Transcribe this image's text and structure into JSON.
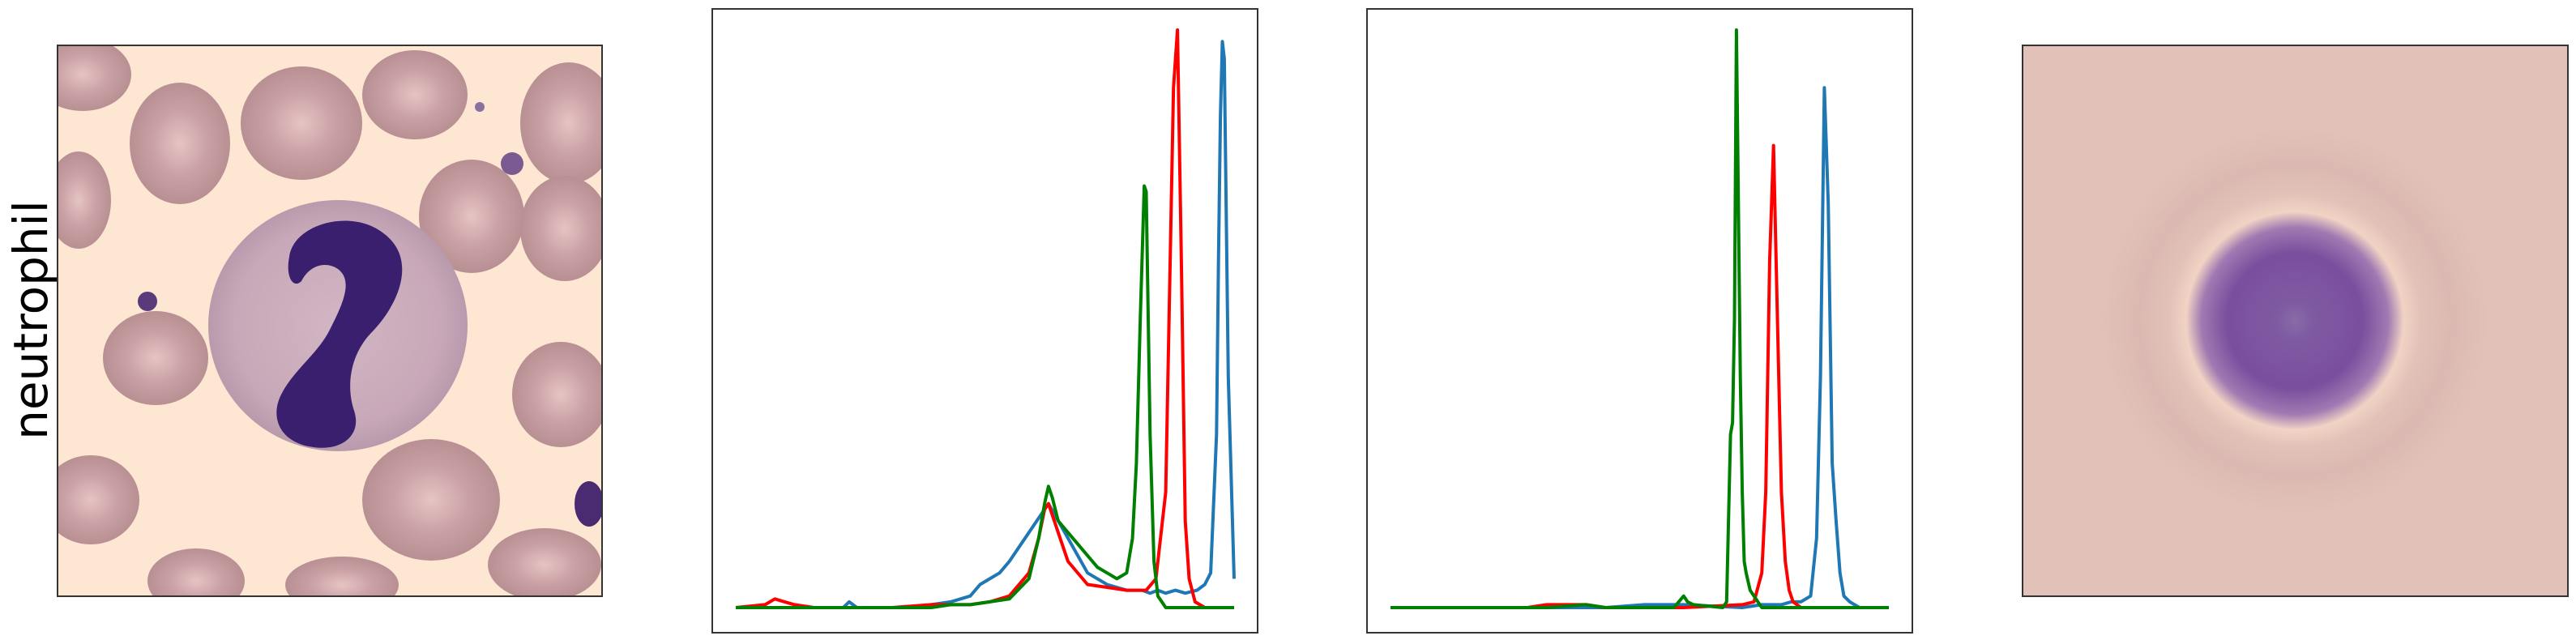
{
  "row_label": "neutrophil",
  "panels": {
    "cell_image": {
      "description_icon": "neutrophil-micrograph"
    },
    "mean_image": {
      "description_icon": "averaged-cell-blob"
    }
  },
  "chart_data": [
    {
      "type": "line",
      "title": "",
      "xlabel": "",
      "ylabel": "",
      "grid": false,
      "axes_ticks": false,
      "xlim": [
        0,
        255
      ],
      "ylim": [
        0,
        1
      ],
      "series": [
        {
          "color": "#1f77b4",
          "x": [
            0,
            15,
            40,
            55,
            58,
            62,
            80,
            95,
            100,
            110,
            120,
            125,
            130,
            135,
            140,
            150,
            160,
            170,
            180,
            190,
            200,
            208,
            212,
            216,
            220,
            225,
            230,
            236,
            240,
            243,
            246,
            247,
            248,
            249,
            250,
            252,
            255
          ],
          "values": [
            0,
            0,
            0,
            0,
            0.01,
            0,
            0,
            0,
            0.005,
            0.01,
            0.02,
            0.04,
            0.05,
            0.06,
            0.08,
            0.13,
            0.18,
            0.12,
            0.06,
            0.04,
            0.03,
            0.03,
            0.025,
            0.03,
            0.025,
            0.03,
            0.025,
            0.03,
            0.04,
            0.06,
            0.3,
            0.6,
            0.85,
            0.98,
            0.95,
            0.4,
            0.05
          ]
        },
        {
          "color": "#ff0000",
          "x": [
            0,
            15,
            20,
            25,
            30,
            40,
            60,
            80,
            100,
            120,
            130,
            140,
            150,
            155,
            158,
            160,
            165,
            170,
            180,
            190,
            200,
            210,
            215,
            220,
            222,
            224,
            226,
            228,
            230,
            232,
            235,
            240,
            255
          ],
          "values": [
            0,
            0.005,
            0.015,
            0.01,
            0.005,
            0,
            0,
            0,
            0.005,
            0.005,
            0.01,
            0.02,
            0.06,
            0.12,
            0.17,
            0.18,
            0.13,
            0.08,
            0.04,
            0.035,
            0.03,
            0.03,
            0.05,
            0.2,
            0.55,
            0.9,
            1.0,
            0.6,
            0.15,
            0.05,
            0.01,
            0,
            0
          ]
        },
        {
          "color": "#008000",
          "x": [
            0,
            40,
            80,
            100,
            110,
            120,
            130,
            140,
            150,
            155,
            158,
            160,
            162,
            165,
            170,
            175,
            180,
            185,
            190,
            195,
            200,
            203,
            205,
            207,
            209,
            210,
            212,
            214,
            216,
            218,
            220,
            225,
            230,
            255
          ],
          "values": [
            0,
            0,
            0,
            0,
            0.005,
            0.005,
            0.01,
            0.015,
            0.05,
            0.12,
            0.18,
            0.21,
            0.19,
            0.15,
            0.13,
            0.11,
            0.09,
            0.07,
            0.06,
            0.05,
            0.06,
            0.12,
            0.25,
            0.5,
            0.73,
            0.72,
            0.3,
            0.08,
            0.02,
            0.01,
            0,
            0,
            0,
            0
          ]
        }
      ]
    },
    {
      "type": "line",
      "title": "",
      "xlabel": "",
      "ylabel": "",
      "grid": false,
      "axes_ticks": false,
      "xlim": [
        0,
        255
      ],
      "ylim": [
        0,
        1
      ],
      "series": [
        {
          "color": "#1f77b4",
          "x": [
            0,
            40,
            80,
            100,
            110,
            130,
            150,
            180,
            190,
            200,
            205,
            210,
            215,
            218,
            220,
            222,
            224,
            226,
            228,
            230,
            232,
            235,
            240,
            255
          ],
          "values": [
            0,
            0,
            0,
            0,
            0,
            0.005,
            0.005,
            0,
            0.005,
            0.005,
            0.01,
            0.01,
            0.02,
            0.12,
            0.4,
            0.9,
            0.7,
            0.25,
            0.15,
            0.06,
            0.02,
            0.01,
            0,
            0
          ]
        },
        {
          "color": "#ff0000",
          "x": [
            0,
            40,
            70,
            80,
            90,
            100,
            110,
            150,
            180,
            186,
            190,
            192,
            194,
            196,
            198,
            200,
            202,
            204,
            206,
            210,
            215,
            255
          ],
          "values": [
            0,
            0,
            0,
            0.005,
            0.005,
            0.005,
            0,
            0,
            0.005,
            0.01,
            0.06,
            0.2,
            0.6,
            0.8,
            0.5,
            0.2,
            0.08,
            0.03,
            0.01,
            0,
            0,
            0
          ]
        },
        {
          "color": "#008000",
          "x": [
            0,
            70,
            80,
            100,
            110,
            145,
            150,
            152,
            155,
            170,
            172,
            174,
            175,
            176,
            177,
            178,
            179,
            180,
            181,
            182,
            184,
            186,
            188,
            190,
            200,
            255
          ],
          "values": [
            0,
            0,
            0,
            0.005,
            0,
            0,
            0.02,
            0.01,
            0.005,
            0,
            0.01,
            0.3,
            0.32,
            0.5,
            1.0,
            0.7,
            0.4,
            0.2,
            0.08,
            0.06,
            0.03,
            0.02,
            0.01,
            0,
            0,
            0
          ]
        }
      ]
    }
  ]
}
